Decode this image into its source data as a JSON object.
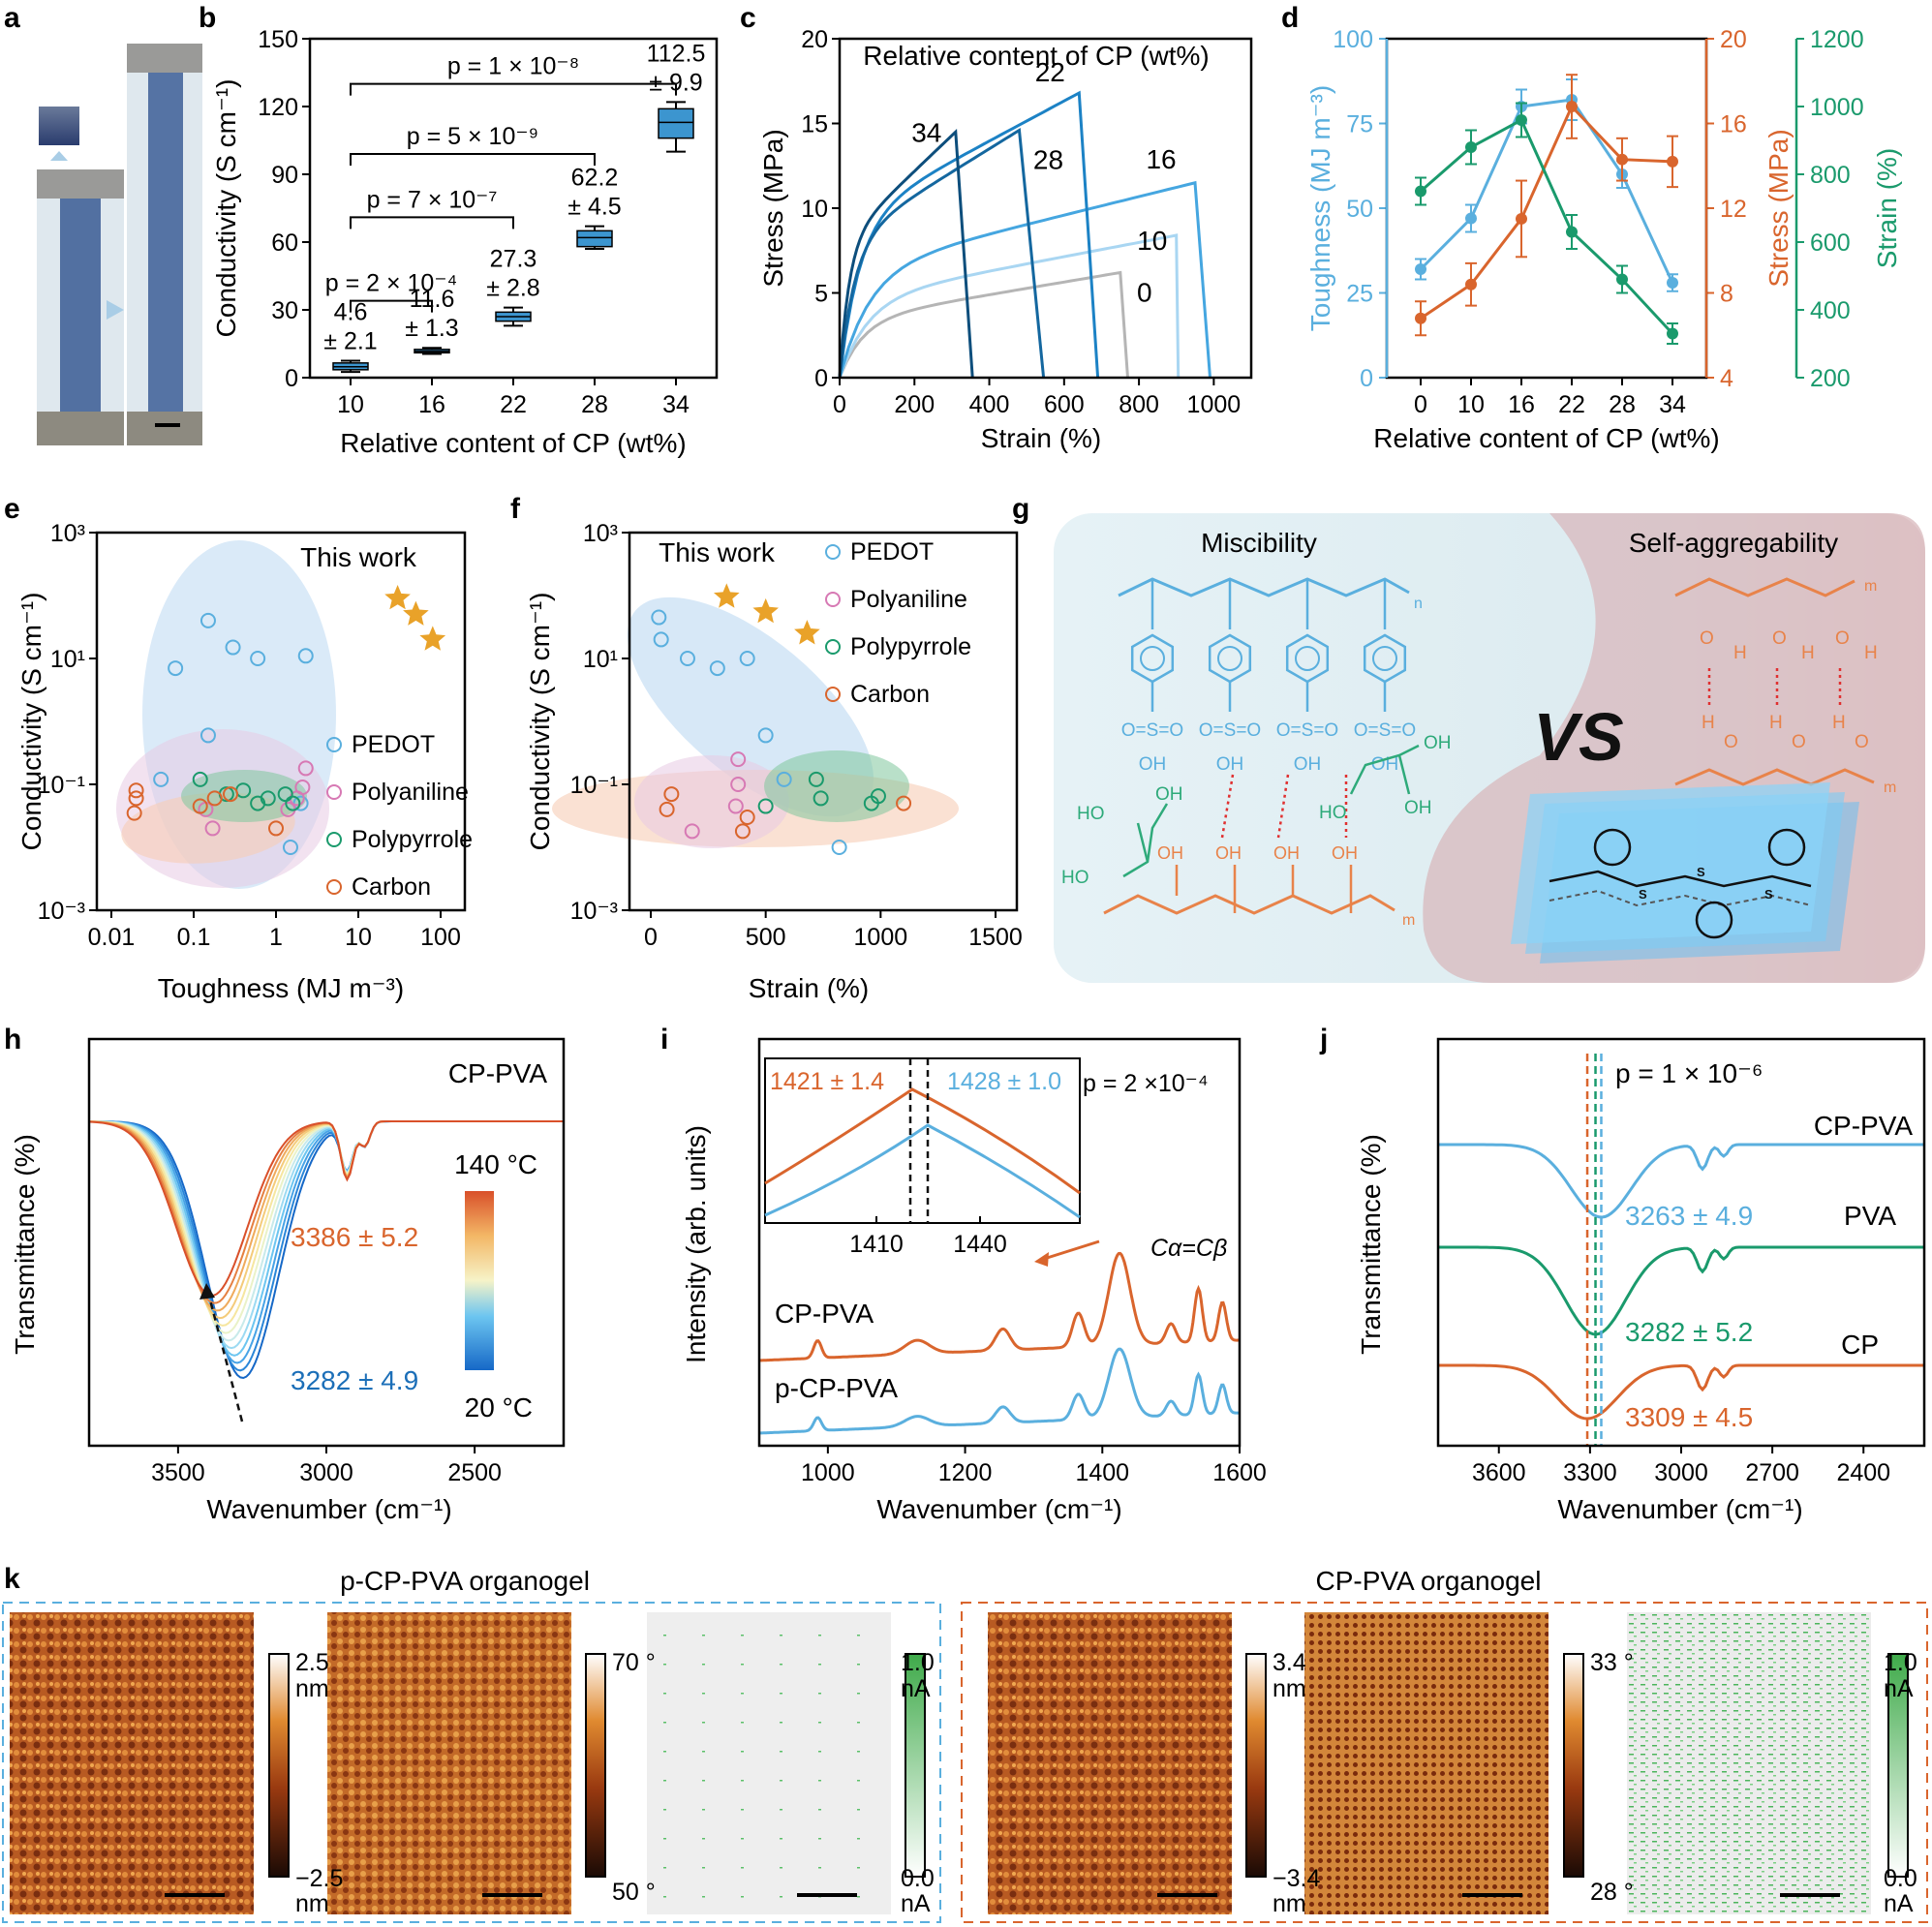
{
  "panels": {
    "a": {
      "letter": "a"
    },
    "b": {
      "letter": "b"
    },
    "c": {
      "letter": "c"
    },
    "d": {
      "letter": "d"
    },
    "e": {
      "letter": "e"
    },
    "f": {
      "letter": "f"
    },
    "g": {
      "letter": "g",
      "left_title": "Miscibility",
      "right_title": "Self-aggregability",
      "vs": "VS",
      "n": "n",
      "m": "m"
    },
    "h": {
      "letter": "h"
    },
    "i": {
      "letter": "i"
    },
    "j": {
      "letter": "j"
    },
    "k": {
      "letter": "k",
      "left_title": "p-CP-PVA organogel",
      "right_title": "CP-PVA organogel",
      "scales": [
        {
          "top": "2.5",
          "top_unit": "nm",
          "bottom": "−2.5",
          "bottom_unit": "nm"
        },
        {
          "top": "70 °",
          "top_unit": "",
          "bottom": "50 °",
          "bottom_unit": ""
        },
        {
          "top": "1.0",
          "top_unit": "nA",
          "bottom": "0.0",
          "bottom_unit": "nA"
        },
        {
          "top": "3.4",
          "top_unit": "nm",
          "bottom": "−3.4",
          "bottom_unit": "nm"
        },
        {
          "top": "33 °",
          "top_unit": "",
          "bottom": "28 °",
          "bottom_unit": ""
        },
        {
          "top": "1.0",
          "top_unit": "nA",
          "bottom": "0.0",
          "bottom_unit": "nA"
        }
      ]
    }
  },
  "colors": {
    "blue": "#5aafde",
    "orange": "#d9652d",
    "green": "#1a9a6c",
    "gray": "#b5b5b5",
    "star": "#e9a229"
  },
  "chart_data": [
    {
      "id": "b",
      "type": "box",
      "xlabel": "Relative content of CP (wt%)",
      "ylabel": "Conductivity (S cm⁻¹)",
      "categories": [
        "10",
        "16",
        "22",
        "28",
        "34"
      ],
      "ylim": [
        0,
        150
      ],
      "yticks": [
        0,
        30,
        60,
        90,
        120,
        150
      ],
      "boxes": [
        {
          "q1": 3.5,
          "q3": 6.5,
          "median": 4.8,
          "lo": 2.5,
          "hi": 7.5,
          "label1": "4.6",
          "label2": "± 2.1"
        },
        {
          "q1": 11,
          "q3": 12.5,
          "median": 11.6,
          "lo": 10.5,
          "hi": 13.2,
          "label1": "11.6",
          "label2": "± 1.3"
        },
        {
          "q1": 25,
          "q3": 29,
          "median": 27,
          "lo": 23,
          "hi": 31,
          "label1": "27.3",
          "label2": "± 2.8"
        },
        {
          "q1": 58,
          "q3": 65,
          "median": 62,
          "lo": 57,
          "hi": 67,
          "label1": "62.2",
          "label2": "± 4.5"
        },
        {
          "q1": 106,
          "q3": 119,
          "median": 113,
          "lo": 100,
          "hi": 122,
          "label1": "112.5",
          "label2": "± 9.9"
        }
      ],
      "brackets": [
        {
          "from": 0,
          "to": 1,
          "y": 34,
          "text": "p = 2 × 10⁻⁴"
        },
        {
          "from": 0,
          "to": 2,
          "y": 71,
          "text": "p = 7 × 10⁻⁷"
        },
        {
          "from": 0,
          "to": 3,
          "y": 99,
          "text": "p = 5 × 10⁻⁹"
        },
        {
          "from": 0,
          "to": 4,
          "y": 130,
          "text": "p = 1 × 10⁻⁸"
        }
      ]
    },
    {
      "id": "c",
      "type": "line",
      "title": "Relative content of CP (wt%)",
      "xlabel": "Strain (%)",
      "ylabel": "Stress (MPa)",
      "xlim": [
        0,
        1100
      ],
      "ylim": [
        0,
        20
      ],
      "xticks": [
        0,
        200,
        400,
        600,
        800,
        1000
      ],
      "yticks": [
        0,
        5,
        10,
        15,
        20
      ],
      "series": [
        {
          "name": "0",
          "break": 750,
          "end": 770,
          "peak": 6.2,
          "color": "#b5b5b5"
        },
        {
          "name": "10",
          "break": 900,
          "end": 905,
          "peak": 8.4,
          "color": "#a9d6f2"
        },
        {
          "name": "16",
          "break": 950,
          "end": 990,
          "peak": 11.5,
          "color": "#45a6e0"
        },
        {
          "name": "22",
          "break": 640,
          "end": 690,
          "peak": 16.8,
          "color": "#1c82c5"
        },
        {
          "name": "28",
          "break": 480,
          "end": 545,
          "peak": 14.6,
          "color": "#14679f"
        },
        {
          "name": "34",
          "break": 310,
          "end": 355,
          "peak": 14.5,
          "color": "#0d4e7c"
        }
      ]
    },
    {
      "id": "d",
      "type": "line",
      "xlabel": "Relative content of CP (wt%)",
      "categories": [
        "0",
        "10",
        "16",
        "22",
        "28",
        "34"
      ],
      "series": [
        {
          "name": "Toughness",
          "axis_label": "Toughness (MJ m⁻³)",
          "ylim": [
            0,
            100
          ],
          "yticks": [
            0,
            25,
            50,
            75,
            100
          ],
          "values": [
            32,
            47,
            80,
            82,
            60,
            28
          ],
          "err": [
            3,
            4,
            5,
            6,
            4,
            2.5
          ],
          "color": "#5aafde"
        },
        {
          "name": "Stress",
          "axis_label": "Stress (MPa)",
          "ylim": [
            4,
            20
          ],
          "yticks": [
            4,
            8,
            12,
            16,
            20
          ],
          "values": [
            6.8,
            8.4,
            11.5,
            16.8,
            14.3,
            14.2
          ],
          "err": [
            0.8,
            1,
            1.8,
            1.5,
            1,
            1.2
          ],
          "color": "#d9652d"
        },
        {
          "name": "Strain",
          "axis_label": "Strain (%)",
          "ylim": [
            200,
            1200
          ],
          "yticks": [
            200,
            400,
            600,
            800,
            1000,
            1200
          ],
          "values": [
            750,
            880,
            960,
            630,
            490,
            330
          ],
          "err": [
            40,
            50,
            50,
            50,
            40,
            30
          ],
          "color": "#1a9a6c"
        }
      ]
    },
    {
      "id": "e",
      "type": "scatter",
      "xlabel": "Toughness (MJ m⁻³)",
      "ylabel": "Conductivity (S cm⁻¹)",
      "xscale": "log",
      "yscale": "log",
      "xticks": [
        "0.01",
        "0.1",
        "1",
        "10",
        "100"
      ],
      "yticks": [
        "10⁻³",
        "10⁻¹",
        "10¹",
        "10³"
      ],
      "annotation": "This work",
      "series": [
        {
          "name": "PEDOT",
          "points": [
            [
              0.06,
              7
            ],
            [
              0.15,
              40
            ],
            [
              0.3,
              15
            ],
            [
              0.6,
              10
            ],
            [
              2.3,
              11
            ],
            [
              0.04,
              0.12
            ],
            [
              0.15,
              0.6
            ],
            [
              2.0,
              0.05
            ],
            [
              1.5,
              0.01
            ]
          ]
        },
        {
          "name": "Polyaniline",
          "points": [
            [
              2.3,
              0.18
            ],
            [
              2.1,
              0.09
            ],
            [
              1.4,
              0.04
            ],
            [
              0.17,
              0.02
            ],
            [
              0.14,
              0.04
            ],
            [
              1.8,
              0.06
            ]
          ]
        },
        {
          "name": "Polypyrrole",
          "points": [
            [
              0.12,
              0.12
            ],
            [
              0.25,
              0.07
            ],
            [
              0.6,
              0.05
            ],
            [
              0.8,
              0.06
            ],
            [
              1.3,
              0.07
            ],
            [
              1.6,
              0.05
            ],
            [
              0.4,
              0.08
            ]
          ]
        },
        {
          "name": "Carbon",
          "points": [
            [
              0.02,
              0.06
            ],
            [
              0.019,
              0.035
            ],
            [
              0.12,
              0.045
            ],
            [
              0.18,
              0.06
            ],
            [
              0.28,
              0.07
            ],
            [
              1.0,
              0.02
            ],
            [
              0.02,
              0.08
            ]
          ]
        },
        {
          "name": "This work",
          "points": [
            [
              30,
              90
            ],
            [
              50,
              50
            ],
            [
              80,
              20
            ]
          ]
        }
      ]
    },
    {
      "id": "f",
      "type": "scatter",
      "xlabel": "Strain (%)",
      "ylabel": "Conductivity (S cm⁻¹)",
      "yscale": "log",
      "xlim": [
        0,
        1500
      ],
      "xticks": [
        "0",
        "500",
        "1000",
        "1500"
      ],
      "yticks": [
        "10⁻³",
        "10⁻¹",
        "10¹",
        "10³"
      ],
      "annotation": "This work",
      "series": [
        {
          "name": "PEDOT",
          "points": [
            [
              35,
              45
            ],
            [
              45,
              20
            ],
            [
              160,
              10
            ],
            [
              290,
              7
            ],
            [
              420,
              10
            ],
            [
              500,
              0.6
            ],
            [
              580,
              0.12
            ],
            [
              820,
              0.01
            ]
          ]
        },
        {
          "name": "Polyaniline",
          "points": [
            [
              380,
              0.25
            ],
            [
              380,
              0.1
            ],
            [
              370,
              0.045
            ],
            [
              180,
              0.018
            ]
          ]
        },
        {
          "name": "Polypyrrole",
          "points": [
            [
              500,
              0.045
            ],
            [
              720,
              0.12
            ],
            [
              740,
              0.06
            ],
            [
              960,
              0.05
            ],
            [
              990,
              0.065
            ]
          ]
        },
        {
          "name": "Carbon",
          "points": [
            [
              70,
              0.04
            ],
            [
              90,
              0.07
            ],
            [
              420,
              0.03
            ],
            [
              400,
              0.018
            ],
            [
              1100,
              0.05
            ]
          ]
        },
        {
          "name": "This work",
          "points": [
            [
              330,
              95
            ],
            [
              500,
              55
            ],
            [
              680,
              25
            ]
          ]
        }
      ]
    },
    {
      "id": "h",
      "type": "line",
      "xlabel": "Wavenumber (cm⁻¹)",
      "ylabel": "Transmittance (%)",
      "xlim": [
        3800,
        2200
      ],
      "xticks": [
        3500,
        3000,
        2500
      ],
      "title": "CP-PVA",
      "colorbar_top": "140 °C",
      "colorbar_bottom": "20 °C",
      "peak_high": "3386 ± 5.2",
      "peak_low": "3282 ± 4.9",
      "n_series": 12
    },
    {
      "id": "i",
      "type": "line",
      "xlabel": "Wavenumber (cm⁻¹)",
      "ylabel": "Intensity (arb. units)",
      "xlim": [
        900,
        1600
      ],
      "xticks": [
        1000,
        1200,
        1400,
        1600
      ],
      "series": [
        {
          "name": "CP-PVA",
          "color": "#d9652d"
        },
        {
          "name": "p-CP-PVA",
          "color": "#5aafde"
        }
      ],
      "inset": {
        "xticks": [
          "1410",
          "1440"
        ],
        "label_a": "1421 ± 1.4",
        "label_b": "1428 ± 1.0",
        "p": "p = 2 ×10⁻⁴"
      },
      "peak_label": "Cα=Cβ"
    },
    {
      "id": "j",
      "type": "line",
      "xlabel": "Wavenumber (cm⁻¹)",
      "ylabel": "Transmittance (%)",
      "xlim": [
        3800,
        2200
      ],
      "xticks": [
        3600,
        3300,
        3000,
        2700,
        2400
      ],
      "p": "p = 1 × 10⁻⁶",
      "series": [
        {
          "name": "CP-PVA",
          "peak": "3263 ± 4.9",
          "color": "#5aafde"
        },
        {
          "name": "PVA",
          "peak": "3282 ± 5.2",
          "color": "#1a9a6c"
        },
        {
          "name": "CP",
          "peak": "3309 ± 4.5",
          "color": "#d9652d"
        }
      ]
    }
  ]
}
